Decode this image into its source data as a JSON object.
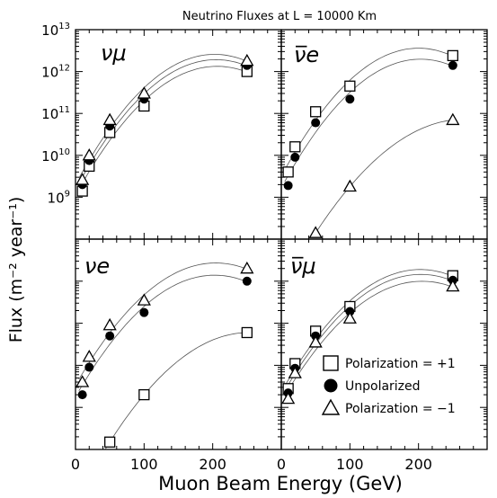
{
  "title": "Neutrino Fluxes at L = 10000 Km",
  "ylabel": "Flux (m⁻² year⁻¹)",
  "xlabel": "Muon Beam Energy  (GeV)",
  "legend": [
    {
      "marker": "square",
      "label": "Polarization = +1"
    },
    {
      "marker": "circle",
      "label": "Unpolarized"
    },
    {
      "marker": "triangle",
      "label": "Polarization = −1"
    }
  ],
  "chart_data": [
    {
      "type": "scatter",
      "panel": "top-left",
      "label": "νμ",
      "x_scale": "linear",
      "y_scale": "log",
      "xlim": [
        0,
        300
      ],
      "ylim": [
        100000000.0,
        10000000000000.0
      ],
      "xticks": [
        "0",
        "100",
        "200"
      ],
      "yticks": [
        "10^9",
        "10^10",
        "10^11",
        "10^12",
        "10^13"
      ],
      "series": [
        {
          "marker": "square",
          "x": [
            10,
            20,
            50,
            100,
            250
          ],
          "y": [
            1400000000.0,
            5500000000.0,
            35000000000.0,
            150000000000.0,
            1000000000000.0
          ]
        },
        {
          "marker": "circle",
          "x": [
            10,
            20,
            50,
            100,
            250
          ],
          "y": [
            2000000000.0,
            7500000000.0,
            50000000000.0,
            220000000000.0,
            1400000000000.0
          ]
        },
        {
          "marker": "triangle",
          "x": [
            10,
            20,
            50,
            100,
            250
          ],
          "y": [
            2600000000.0,
            10000000000.0,
            70000000000.0,
            300000000000.0,
            1800000000000.0
          ]
        }
      ]
    },
    {
      "type": "scatter",
      "panel": "top-right",
      "label": "ν̅e",
      "x_scale": "linear",
      "y_scale": "log",
      "xlim": [
        0,
        300
      ],
      "ylim": [
        100000000.0,
        10000000000000.0
      ],
      "series": [
        {
          "marker": "square",
          "x": [
            10,
            20,
            50,
            100,
            250
          ],
          "y": [
            4000000000.0,
            16000000000.0,
            110000000000.0,
            450000000000.0,
            2400000000000.0
          ]
        },
        {
          "marker": "circle",
          "x": [
            10,
            20,
            50,
            100,
            250
          ],
          "y": [
            1900000000.0,
            9000000000.0,
            60000000000.0,
            220000000000.0,
            1400000000000.0
          ]
        },
        {
          "marker": "triangle",
          "x": [
            50,
            100,
            250
          ],
          "y": [
            140000000.0,
            1800000000.0,
            70000000000.0
          ]
        }
      ]
    },
    {
      "type": "scatter",
      "panel": "bottom-left",
      "label": "νe",
      "x_scale": "linear",
      "y_scale": "log",
      "xlim": [
        0,
        300
      ],
      "ylim": [
        100000000.0,
        10000000000000.0
      ],
      "series": [
        {
          "marker": "square",
          "x": [
            50,
            100,
            250
          ],
          "y": [
            150000000.0,
            2000000000.0,
            60000000000.0
          ]
        },
        {
          "marker": "circle",
          "x": [
            10,
            20,
            50,
            100,
            250
          ],
          "y": [
            2000000000.0,
            9000000000.0,
            50000000000.0,
            180000000000.0,
            1000000000000.0
          ]
        },
        {
          "marker": "triangle",
          "x": [
            10,
            20,
            50,
            100,
            250
          ],
          "y": [
            4000000000.0,
            16000000000.0,
            90000000000.0,
            350000000000.0,
            2000000000000.0
          ]
        }
      ]
    },
    {
      "type": "scatter",
      "panel": "bottom-right",
      "label": "ν̅μ",
      "x_scale": "linear",
      "y_scale": "log",
      "xlim": [
        0,
        300
      ],
      "ylim": [
        100000000.0,
        10000000000000.0
      ],
      "series": [
        {
          "marker": "square",
          "x": [
            10,
            20,
            50,
            100,
            250
          ],
          "y": [
            2800000000.0,
            11000000000.0,
            65000000000.0,
            250000000000.0,
            1350000000000.0
          ]
        },
        {
          "marker": "circle",
          "x": [
            10,
            20,
            50,
            100,
            250
          ],
          "y": [
            2200000000.0,
            8500000000.0,
            50000000000.0,
            190000000000.0,
            1050000000000.0
          ]
        },
        {
          "marker": "triangle",
          "x": [
            10,
            20,
            50,
            100,
            250
          ],
          "y": [
            1600000000.0,
            6500000000.0,
            35000000000.0,
            130000000000.0,
            750000000000.0
          ]
        }
      ]
    }
  ]
}
